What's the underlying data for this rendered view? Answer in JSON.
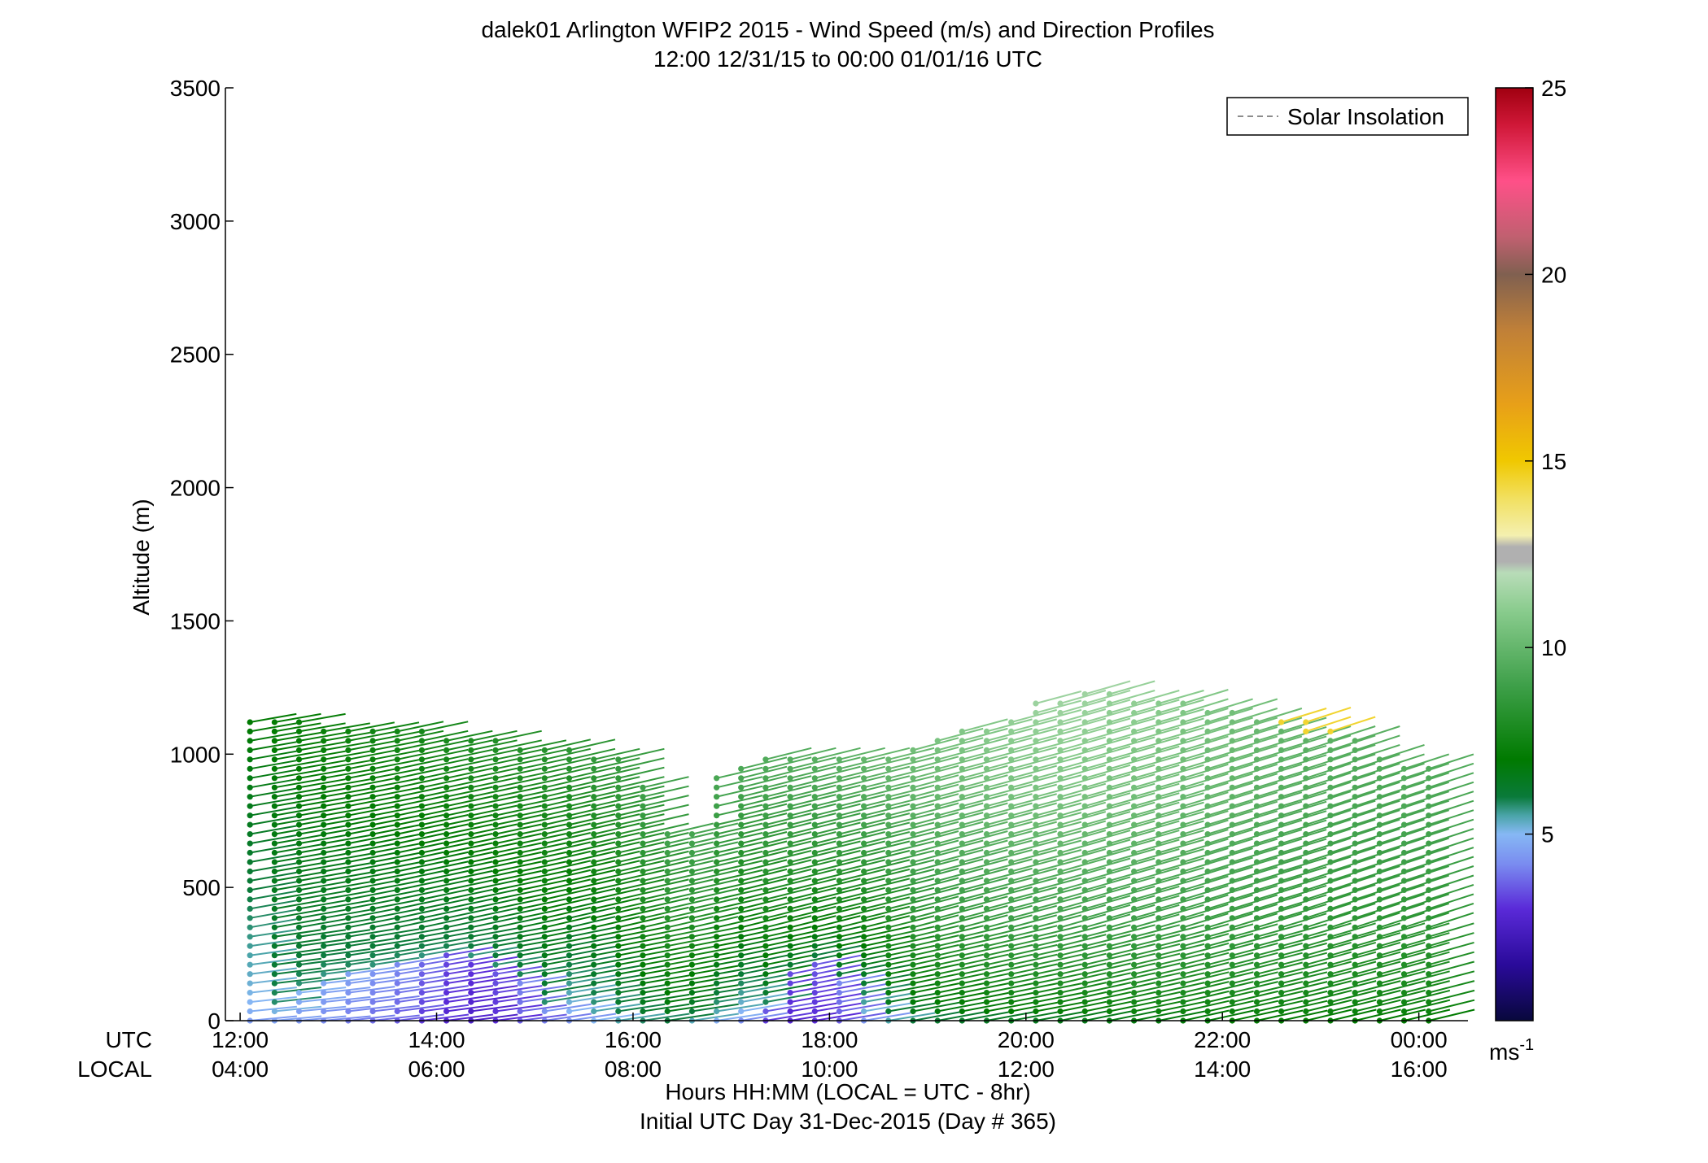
{
  "chart_data": {
    "type": "wind-barb-profile",
    "title": "dalek01 Arlington WFIP2 2015 - Wind Speed (m/s) and Direction Profiles",
    "subtitle": "12:00 12/31/15 to 00:00 01/01/16  UTC",
    "ylabel": "Altitude (m)",
    "xlabel": "Hours HH:MM  (LOCAL = UTC - 8hr)",
    "xlabel2": "Initial UTC Day 31-Dec-2015 (Day # 365)",
    "utc_row_label": "UTC",
    "local_row_label": "LOCAL",
    "ylim": [
      0,
      3500
    ],
    "yticks": [
      0,
      500,
      1000,
      1500,
      2000,
      2500,
      3000,
      3500
    ],
    "xlim_hours": [
      11.85,
      24.5
    ],
    "xticks_hours": [
      12,
      14,
      16,
      18,
      20,
      22,
      24
    ],
    "utc_tick_labels": [
      "12:00",
      "14:00",
      "16:00",
      "18:00",
      "20:00",
      "22:00",
      "00:00"
    ],
    "local_tick_labels": [
      "04:00",
      "06:00",
      "08:00",
      "10:00",
      "12:00",
      "14:00",
      "16:00"
    ],
    "legend": {
      "label": "Solar Insolation",
      "placement": "top-right",
      "color": "#8c8c8c"
    },
    "colorbar": {
      "label": "ms",
      "label_superscript": "-1",
      "range": [
        0,
        25
      ],
      "ticks": [
        5,
        10,
        15,
        20,
        25
      ],
      "stops": [
        {
          "v": 0,
          "c": "#08083c"
        },
        {
          "v": 1.5,
          "c": "#2a0a9a"
        },
        {
          "v": 3,
          "c": "#5a2ad8"
        },
        {
          "v": 4.2,
          "c": "#7a8cf0"
        },
        {
          "v": 5,
          "c": "#86b8f4"
        },
        {
          "v": 5.5,
          "c": "#4aa4a8"
        },
        {
          "v": 6,
          "c": "#0a7a3a"
        },
        {
          "v": 7,
          "c": "#007a00"
        },
        {
          "v": 9,
          "c": "#3fa04a"
        },
        {
          "v": 11,
          "c": "#8acc8e"
        },
        {
          "v": 12,
          "c": "#b8dcb8"
        },
        {
          "v": 12.3,
          "c": "#b0b0b0"
        },
        {
          "v": 12.7,
          "c": "#b0b0b0"
        },
        {
          "v": 13,
          "c": "#f4f0b0"
        },
        {
          "v": 14,
          "c": "#f2e060"
        },
        {
          "v": 15,
          "c": "#f0c800"
        },
        {
          "v": 16.5,
          "c": "#e8a018"
        },
        {
          "v": 18.5,
          "c": "#c08038"
        },
        {
          "v": 20,
          "c": "#806050"
        },
        {
          "v": 21,
          "c": "#c06070"
        },
        {
          "v": 22.5,
          "c": "#ff5088"
        },
        {
          "v": 24,
          "c": "#d01838"
        },
        {
          "v": 25,
          "c": "#a00010"
        }
      ]
    },
    "profiles": {
      "time_start_hour": 12.1,
      "time_step_hours": 0.25,
      "n_times": 49,
      "alt_start_m": 0,
      "alt_step_m": 35,
      "top_altitude_m": [
        1135,
        1130,
        1120,
        1100,
        1100,
        1100,
        1095,
        1085,
        1075,
        1060,
        1050,
        1040,
        1030,
        1020,
        1005,
        995,
        890,
        720,
        710,
        910,
        960,
        985,
        985,
        985,
        985,
        985,
        995,
        1030,
        1060,
        1090,
        1100,
        1140,
        1190,
        1220,
        1245,
        1250,
        1215,
        1210,
        1200,
        1180,
        1160,
        1140,
        1130,
        1120,
        1110,
        1080,
        1010,
        960,
        950
      ],
      "low_speed_top_m": [
        0,
        40,
        120,
        170,
        180,
        200,
        220,
        240,
        250,
        240,
        200,
        150,
        60,
        0,
        0,
        0,
        0,
        0,
        0,
        0,
        0,
        60,
        180,
        230,
        150,
        0,
        0,
        0,
        0,
        0,
        0,
        0,
        0,
        0,
        0,
        0,
        0,
        0,
        0,
        0,
        0,
        0,
        0,
        0,
        0,
        0,
        0,
        0,
        0
      ],
      "surface_speed_ms": [
        4.5,
        4.6,
        4.4,
        4.2,
        4.0,
        3.8,
        3.6,
        3.2,
        2.8,
        2.6,
        3.0,
        3.6,
        4.0,
        4.4,
        5.0,
        5.5,
        5.8,
        6.0,
        5.4,
        4.8,
        4.2,
        3.2,
        2.8,
        3.0,
        3.6,
        4.4,
        5.5,
        6.0,
        6.2,
        6.3,
        6.4,
        6.5,
        6.5,
        6.6,
        6.6,
        6.7,
        6.8,
        6.8,
        6.9,
        6.9,
        7.0,
        7.0,
        7.0,
        7.0,
        7.0,
        7.0,
        7.0,
        7.0,
        7.0
      ],
      "upper_speed_ms": [
        7.0,
        7.1,
        7.2,
        7.3,
        7.4,
        7.5,
        7.6,
        7.7,
        7.8,
        7.9,
        8.0,
        8.1,
        8.2,
        8.4,
        8.6,
        8.8,
        9.0,
        9.2,
        9.2,
        9.3,
        9.4,
        9.5,
        9.6,
        9.7,
        9.8,
        10.0,
        10.2,
        10.4,
        10.6,
        10.8,
        11.0,
        11.2,
        11.4,
        11.5,
        11.5,
        11.3,
        11.2,
        11.0,
        10.8,
        10.6,
        10.4,
        10.2,
        10.0,
        9.9,
        9.8,
        9.7,
        9.6,
        9.6,
        9.5
      ],
      "direction_deg": [
        268,
        268,
        268,
        268,
        267,
        267,
        266,
        266,
        266,
        266,
        266,
        266,
        265,
        265,
        265,
        265,
        265,
        265,
        265,
        265,
        264,
        264,
        264,
        264,
        264,
        264,
        264,
        263,
        263,
        263,
        263,
        263,
        263,
        262,
        262,
        262,
        262,
        262,
        261,
        261,
        261,
        261,
        261,
        260,
        260,
        260,
        260,
        260,
        260
      ],
      "top_anomaly_speed_ms": 14.5,
      "top_anomaly_time_index": 43
    }
  }
}
